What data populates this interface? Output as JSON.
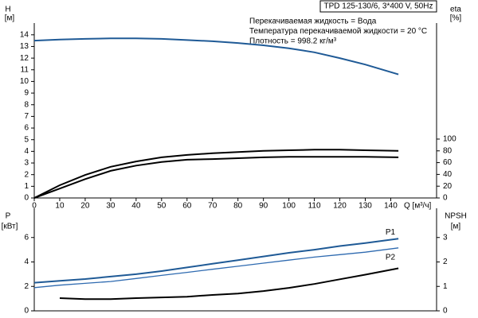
{
  "chart_data": [
    {
      "type": "line",
      "title": "TPD 125-130/6, 3*400 V, 50Hz",
      "annotations": [
        "Перекачиваемая жидкость = Вода",
        "Температура перекачиваемой жидкости = 20 °C",
        "Плотность = 998.2 кг/м³"
      ],
      "x": [
        0,
        10,
        20,
        30,
        40,
        50,
        60,
        70,
        80,
        90,
        100,
        110,
        120,
        130,
        143
      ],
      "xlim": [
        0,
        158
      ],
      "xticks": [
        0,
        10,
        20,
        30,
        40,
        50,
        60,
        70,
        80,
        90,
        100,
        110,
        120,
        130,
        140
      ],
      "xlabel": "Q [м³/ч]",
      "ylim": [
        0,
        14.6
      ],
      "yticks": [
        0,
        1,
        2,
        3,
        4,
        5,
        6,
        7,
        8,
        9,
        10,
        11,
        12,
        13,
        14
      ],
      "ylabel": "H",
      "yunit": "[м]",
      "y2lim": [
        0,
        289
      ],
      "y2ticks": [
        0,
        20,
        40,
        60,
        80,
        100
      ],
      "y2label": "eta",
      "y2unit": "[%]",
      "grid": false,
      "series": [
        {
          "color": "#1f5a96",
          "values": [
            13.5,
            13.6,
            13.65,
            13.7,
            13.7,
            13.65,
            13.55,
            13.45,
            13.3,
            13.1,
            12.85,
            12.5,
            12.0,
            11.45,
            10.6
          ]
        },
        {
          "color": "#000000",
          "axis": "y2",
          "values": [
            0,
            21.6,
            39,
            53,
            62,
            69,
            73,
            76,
            78,
            80,
            81,
            82,
            82,
            81,
            80
          ]
        },
        {
          "color": "#000000",
          "axis": "y2",
          "values": [
            0,
            16,
            32,
            46,
            55,
            61,
            65,
            66,
            67.5,
            69,
            70,
            70,
            70,
            70,
            69
          ]
        }
      ]
    },
    {
      "type": "line",
      "x": [
        0,
        10,
        20,
        30,
        40,
        50,
        60,
        70,
        80,
        90,
        100,
        110,
        120,
        130,
        143
      ],
      "xlim": [
        0,
        158
      ],
      "ylim": [
        0,
        8
      ],
      "yticks": [
        0,
        2,
        4,
        6
      ],
      "ylabel": "P",
      "yunit": "[кВт]",
      "y2lim": [
        0,
        4
      ],
      "y2ticks": [
        0,
        1,
        2,
        3
      ],
      "y2label": "NPSH",
      "y2unit": "[м]",
      "grid": false,
      "series": [
        {
          "name": "P1",
          "color": "#1f5a96",
          "values": [
            2.3,
            2.45,
            2.6,
            2.8,
            3.0,
            3.25,
            3.55,
            3.85,
            4.15,
            4.45,
            4.75,
            5.0,
            5.3,
            5.55,
            5.9
          ]
        },
        {
          "name": "P2",
          "color": "#2e6ab0",
          "values": [
            1.9,
            2.1,
            2.25,
            2.4,
            2.65,
            2.9,
            3.15,
            3.4,
            3.65,
            3.9,
            4.15,
            4.4,
            4.6,
            4.8,
            5.15
          ]
        },
        {
          "color": "#000000",
          "axis": "y2",
          "values": [
            null,
            0.52,
            0.48,
            0.48,
            0.52,
            0.55,
            0.58,
            0.65,
            0.71,
            0.81,
            0.94,
            1.1,
            1.29,
            1.48,
            1.74
          ]
        }
      ]
    }
  ]
}
